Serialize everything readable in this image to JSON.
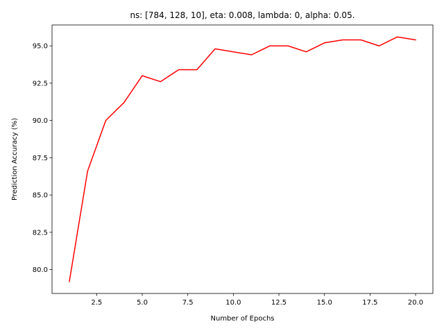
{
  "chart_data": {
    "type": "line",
    "title": "ns: [784, 128, 10], eta: 0.008, lambda: 0, alpha: 0.05.",
    "xlabel": "Number of Epochs",
    "ylabel": "Prediction Accuracy (%)",
    "xlim": [
      0.05,
      20.95
    ],
    "ylim": [
      78.4,
      96.4
    ],
    "x_ticks": [
      2.5,
      5.0,
      7.5,
      10.0,
      12.5,
      15.0,
      17.5,
      20.0
    ],
    "x_tick_labels": [
      "2.5",
      "5.0",
      "7.5",
      "10.0",
      "12.5",
      "15.0",
      "17.5",
      "20.0"
    ],
    "y_ticks": [
      80.0,
      82.5,
      85.0,
      87.5,
      90.0,
      92.5,
      95.0
    ],
    "y_tick_labels": [
      "80.0",
      "82.5",
      "85.0",
      "87.5",
      "90.0",
      "92.5",
      "95.0"
    ],
    "grid": false,
    "series": [
      {
        "color": "#ff0000",
        "x": [
          1,
          2,
          3,
          4,
          5,
          6,
          7,
          8,
          9,
          10,
          11,
          12,
          13,
          14,
          15,
          16,
          17,
          18,
          19,
          20
        ],
        "y": [
          79.2,
          86.6,
          90.0,
          91.2,
          93.0,
          92.6,
          93.4,
          93.4,
          94.8,
          94.6,
          94.4,
          95.0,
          95.0,
          94.6,
          95.2,
          95.4,
          95.4,
          95.0,
          95.6,
          95.4
        ]
      }
    ]
  }
}
